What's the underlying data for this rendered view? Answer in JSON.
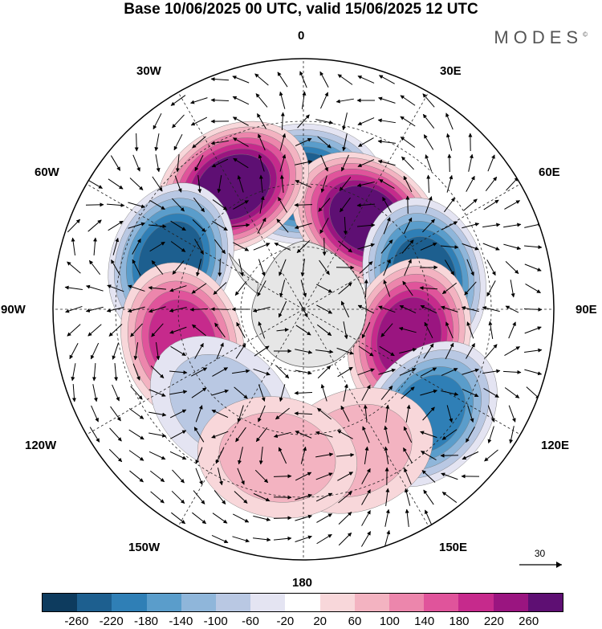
{
  "title": "Base 10/06/2025 00 UTC, valid 15/06/2025 12 UTC",
  "brand": "MODES",
  "brand_mark": "©",
  "longitude_labels": {
    "lon_0": "0",
    "lon_30e": "30E",
    "lon_60e": "60E",
    "lon_90e": "90E",
    "lon_120e": "120E",
    "lon_150e": "150E",
    "lon_180": "180",
    "lon_150w": "150W",
    "lon_120w": "120W",
    "lon_90w": "90W",
    "lon_60w": "60W",
    "lon_30w": "30W"
  },
  "reference_vector": "30",
  "colorbar": {
    "colors": [
      "#0d3b5e",
      "#1d5f8f",
      "#2f7fb6",
      "#5a9dcb",
      "#8fb6da",
      "#b9c8e3",
      "#e4e4f2",
      "#ffffff",
      "#f8d7da",
      "#f3b3c1",
      "#ec86ac",
      "#e0549b",
      "#c62a8c",
      "#9a1580",
      "#5e0f73"
    ],
    "labels": [
      "-260",
      "-220",
      "-180",
      "-140",
      "-100",
      "-60",
      "-20",
      "20",
      "60",
      "100",
      "140",
      "180",
      "220",
      "260"
    ]
  },
  "anomaly_centers": [
    {
      "lon": 0,
      "lat": -50,
      "value": -240
    },
    {
      "lon": 35,
      "lat": -55,
      "value": 260
    },
    {
      "lon": 75,
      "lat": -50,
      "value": -240
    },
    {
      "lon": 105,
      "lat": -55,
      "value": 220
    },
    {
      "lon": 130,
      "lat": -38,
      "value": -200
    },
    {
      "lon": 160,
      "lat": -42,
      "value": 80
    },
    {
      "lon": -30,
      "lat": -45,
      "value": 260
    },
    {
      "lon": -70,
      "lat": -45,
      "value": -220
    },
    {
      "lon": -105,
      "lat": -50,
      "value": 180
    },
    {
      "lon": -140,
      "lat": -50,
      "value": -80
    },
    {
      "lon": -170,
      "lat": -42,
      "value": 60
    }
  ]
}
